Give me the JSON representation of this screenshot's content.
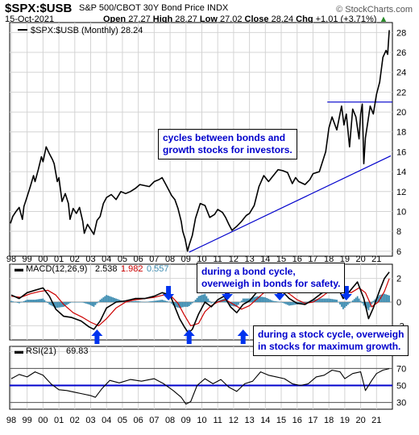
{
  "header": {
    "symbol": "$SPX:$USB",
    "name": "S&P 500/CBOT 30Y Bond Price INDX",
    "source": "© StockCharts.com",
    "date": "15-Oct-2021",
    "open_label": "Open",
    "open": "27.27",
    "high_label": "High",
    "high": "28.27",
    "low_label": "Low",
    "low": "27.02",
    "close_label": "Close",
    "close": "28.24",
    "chg_label": "Chg",
    "chg": "+1.01 (+3.71%)"
  },
  "colors": {
    "price": "#000000",
    "trend": "#0000cc",
    "macd": "#000000",
    "signal": "#cc0000",
    "hist": "#3b8bb0",
    "arrow": "#0033ee",
    "rsi_line": "#0000cc"
  },
  "annotations": {
    "price_note": [
      "cycles between bonds and",
      "growth stocks for investors."
    ],
    "bond_note": [
      "during a bond cycle,",
      "overweigh in bonds for safety."
    ],
    "stock_note": [
      "during a stock cycle, overweigh",
      "in stocks for maximum growth."
    ]
  },
  "chart_data": [
    {
      "type": "line",
      "legend": "$SPX:$USB (Monthly) 28.24",
      "y_ticks": [
        6,
        8,
        10,
        12,
        14,
        16,
        18,
        20,
        22,
        24,
        26,
        28
      ],
      "ylim": [
        5.5,
        29
      ],
      "x_ticks": [
        "98",
        "99",
        "00",
        "01",
        "02",
        "03",
        "04",
        "05",
        "06",
        "07",
        "08",
        "09",
        "10",
        "11",
        "12",
        "13",
        "14",
        "15",
        "16",
        "17",
        "18",
        "19",
        "20",
        "21"
      ],
      "xlim": [
        1997.9,
        2022.0
      ],
      "series": [
        {
          "x": [
            1997.95,
            1998.1,
            1998.3,
            1998.5,
            1998.7,
            1998.8,
            1999.0,
            1999.2,
            1999.4,
            1999.5,
            1999.7,
            1999.9,
            2000.0,
            2000.2,
            2000.4,
            2000.6,
            2000.7,
            2000.9,
            2001.0,
            2001.2,
            2001.4,
            2001.6,
            2001.7,
            2001.9,
            2002.1,
            2002.3,
            2002.5,
            2002.6,
            2002.8,
            2003.0,
            2003.2,
            2003.4,
            2003.6,
            2003.8,
            2004.0,
            2004.3,
            2004.6,
            2004.9,
            2005.2,
            2005.5,
            2005.8,
            2006.1,
            2006.4,
            2006.7,
            2007.0,
            2007.3,
            2007.5,
            2007.7,
            2007.9,
            2008.1,
            2008.3,
            2008.5,
            2008.7,
            2008.8,
            2008.95,
            2009.1,
            2009.2,
            2009.4,
            2009.6,
            2009.9,
            2010.2,
            2010.5,
            2010.8,
            2011.0,
            2011.3,
            2011.5,
            2011.7,
            2011.9,
            2012.2,
            2012.5,
            2012.8,
            2013.0,
            2013.3,
            2013.6,
            2013.9,
            2014.2,
            2014.5,
            2014.8,
            2015.1,
            2015.4,
            2015.7,
            2015.9,
            2016.1,
            2016.5,
            2016.8,
            2017.0,
            2017.4,
            2017.8,
            2018.0,
            2018.2,
            2018.5,
            2018.8,
            2018.95,
            2019.1,
            2019.3,
            2019.5,
            2019.7,
            2019.9,
            2020.0,
            2020.1,
            2020.2,
            2020.3,
            2020.45,
            2020.6,
            2020.8,
            2021.0,
            2021.2,
            2021.4,
            2021.6,
            2021.7,
            2021.8
          ],
          "y": [
            8.8,
            9.5,
            10.0,
            10.4,
            9.2,
            10.5,
            11.5,
            12.5,
            13.6,
            13.0,
            14.2,
            15.5,
            15.0,
            16.5,
            15.8,
            15.2,
            14.8,
            13.0,
            13.4,
            11.0,
            11.8,
            10.8,
            9.2,
            10.3,
            9.8,
            10.4,
            9.0,
            7.8,
            8.7,
            8.2,
            7.7,
            9.1,
            9.5,
            10.8,
            11.4,
            11.7,
            11.2,
            12.0,
            11.8,
            12.0,
            12.3,
            12.7,
            12.6,
            12.5,
            13.0,
            13.2,
            13.4,
            12.8,
            12.2,
            11.6,
            11.2,
            10.3,
            9.0,
            8.0,
            7.2,
            6.0,
            6.6,
            7.6,
            9.3,
            10.8,
            10.6,
            9.4,
            9.7,
            10.2,
            9.9,
            9.4,
            8.7,
            8.1,
            8.5,
            9.0,
            9.6,
            9.8,
            10.6,
            12.5,
            13.6,
            13.0,
            13.6,
            14.2,
            14.1,
            13.9,
            12.8,
            13.4,
            13.0,
            12.7,
            13.2,
            13.8,
            14.0,
            16.0,
            18.4,
            19.5,
            18.2,
            20.6,
            18.7,
            19.8,
            16.5,
            20.3,
            19.5,
            17.3,
            19.8,
            20.8,
            14.8,
            17.4,
            19.0,
            20.6,
            19.8,
            21.8,
            23.0,
            25.5,
            26.2,
            25.8,
            28.24
          ]
        }
      ],
      "trendline": {
        "x": [
          2009.2,
          2021.9
        ],
        "y": [
          5.9,
          15.6
        ]
      },
      "resistance": {
        "x": [
          2017.9,
          2022.0
        ],
        "y": [
          21.0,
          21.0
        ]
      }
    },
    {
      "type": "line",
      "legend_label": "MACD(12,26,9)",
      "legend_values": [
        "2.538",
        "1.982",
        "0.557"
      ],
      "y_ticks": [
        -2,
        0,
        2
      ],
      "ylim": [
        -3.2,
        3.2
      ],
      "xlim": [
        1997.9,
        2022.0
      ],
      "series": [
        {
          "name": "MACD",
          "x": [
            1998.0,
            1998.5,
            1999.0,
            1999.5,
            2000.0,
            2000.4,
            2000.8,
            2001.3,
            2001.8,
            2002.4,
            2002.9,
            2003.2,
            2003.6,
            2004.0,
            2004.6,
            2005.2,
            2005.8,
            2006.4,
            2007.0,
            2007.5,
            2008.0,
            2008.3,
            2008.6,
            2008.9,
            2009.15,
            2009.4,
            2009.8,
            2010.2,
            2010.6,
            2011.0,
            2011.4,
            2011.8,
            2012.2,
            2012.6,
            2013.0,
            2013.5,
            2014.0,
            2014.5,
            2015.0,
            2015.5,
            2016.0,
            2016.5,
            2017.0,
            2017.5,
            2018.0,
            2018.5,
            2018.9,
            2019.3,
            2019.8,
            2020.2,
            2020.5,
            2020.8,
            2021.2,
            2021.5,
            2021.8
          ],
          "y": [
            0.6,
            0.3,
            0.8,
            1.0,
            1.2,
            0.5,
            -0.6,
            -1.2,
            -1.3,
            -1.6,
            -2.1,
            -2.3,
            -1.6,
            -0.5,
            0.0,
            0.1,
            0.3,
            0.3,
            0.5,
            0.8,
            0.6,
            -0.4,
            -1.4,
            -2.1,
            -2.6,
            -2.3,
            -1.0,
            0.0,
            -0.4,
            0.2,
            0.5,
            -0.4,
            -0.9,
            -0.2,
            0.1,
            0.9,
            1.4,
            1.2,
            1.0,
            0.3,
            -0.1,
            -0.2,
            0.2,
            0.7,
            1.2,
            1.4,
            0.3,
            0.9,
            1.7,
            0.3,
            -1.4,
            -0.5,
            1.0,
            2.0,
            2.54
          ]
        },
        {
          "name": "Signal",
          "x": [
            1998.0,
            1998.6,
            1999.2,
            1999.8,
            2000.3,
            2000.8,
            2001.3,
            2001.9,
            2002.5,
            2003.0,
            2003.5,
            2004.0,
            2004.6,
            2005.2,
            2005.8,
            2006.4,
            2007.0,
            2007.6,
            2008.0,
            2008.5,
            2008.9,
            2009.3,
            2009.8,
            2010.2,
            2010.6,
            2011.0,
            2011.5,
            2012.0,
            2012.5,
            2013.0,
            2013.5,
            2014.0,
            2014.5,
            2015.0,
            2015.5,
            2016.0,
            2016.5,
            2017.0,
            2017.5,
            2018.0,
            2018.5,
            2019.0,
            2019.4,
            2019.9,
            2020.3,
            2020.7,
            2021.1,
            2021.5,
            2021.8
          ],
          "y": [
            0.5,
            0.4,
            0.7,
            0.9,
            1.0,
            0.6,
            -0.2,
            -0.9,
            -1.3,
            -1.7,
            -2.0,
            -1.4,
            -0.5,
            0.0,
            0.2,
            0.3,
            0.4,
            0.6,
            0.6,
            -0.1,
            -1.1,
            -2.0,
            -1.8,
            -0.8,
            -0.3,
            0.0,
            0.2,
            -0.2,
            -0.6,
            -0.3,
            0.3,
            0.9,
            1.2,
            1.1,
            0.7,
            0.2,
            -0.1,
            0.0,
            0.4,
            0.9,
            1.2,
            1.0,
            0.8,
            1.2,
            0.8,
            -0.4,
            0.0,
            0.9,
            1.98
          ]
        },
        {
          "name": "Histogram",
          "x": [
            1998.0,
            1998.5,
            1999.0,
            1999.5,
            2000.0,
            2000.4,
            2000.8,
            2001.3,
            2001.8,
            2002.4,
            2002.9,
            2003.2,
            2003.6,
            2004.0,
            2004.6,
            2005.2,
            2005.8,
            2006.4,
            2007.0,
            2007.5,
            2008.0,
            2008.3,
            2008.6,
            2008.9,
            2009.15,
            2009.4,
            2009.8,
            2010.2,
            2010.6,
            2011.0,
            2011.4,
            2011.8,
            2012.2,
            2012.6,
            2013.0,
            2013.5,
            2014.0,
            2014.5,
            2015.0,
            2015.5,
            2016.0,
            2016.5,
            2017.0,
            2017.5,
            2018.0,
            2018.5,
            2018.9,
            2019.3,
            2019.8,
            2020.2,
            2020.5,
            2020.8,
            2021.2,
            2021.5,
            2021.8
          ],
          "y": [
            0.1,
            -0.1,
            0.2,
            0.2,
            0.3,
            -0.2,
            -0.5,
            -0.4,
            0.0,
            0.0,
            -0.2,
            -0.4,
            0.2,
            0.6,
            0.3,
            0.0,
            0.1,
            0.0,
            0.1,
            0.2,
            0.0,
            -0.4,
            -0.5,
            -0.4,
            -0.4,
            -0.1,
            0.5,
            0.7,
            -0.1,
            0.1,
            0.3,
            -0.3,
            -0.4,
            0.3,
            0.3,
            0.5,
            0.4,
            0.1,
            0.0,
            -0.3,
            -0.2,
            -0.1,
            0.2,
            0.3,
            0.3,
            0.2,
            -0.6,
            -0.1,
            0.5,
            -0.3,
            -0.7,
            0.1,
            0.6,
            0.7,
            0.56
          ]
        }
      ],
      "bond_cycle_arrows_x": [
        2003.4,
        2009.2,
        2012.6,
        2017.0,
        2020.4
      ],
      "stock_cycle_arrows_x": [
        2007.9,
        2011.6,
        2014.9,
        2019.1
      ]
    },
    {
      "type": "line",
      "legend_label": "RSI(21)",
      "legend_value": "69.83",
      "y_ticks": [
        30,
        50,
        70,
        90
      ],
      "ylim": [
        22,
        96
      ],
      "xlim": [
        1997.9,
        2022.0
      ],
      "reference_line": 50,
      "series": [
        {
          "name": "RSI",
          "x": [
            1998.0,
            1998.5,
            1999.0,
            1999.5,
            2000.0,
            2000.5,
            2001.0,
            2001.5,
            2002.0,
            2002.5,
            2003.0,
            2003.3,
            2003.7,
            2004.2,
            2004.8,
            2005.5,
            2006.2,
            2007.0,
            2007.6,
            2008.2,
            2008.7,
            2009.0,
            2009.3,
            2009.7,
            2010.2,
            2010.7,
            2011.2,
            2011.7,
            2012.2,
            2012.7,
            2013.2,
            2013.7,
            2014.2,
            2014.7,
            2015.2,
            2015.7,
            2016.2,
            2016.7,
            2017.2,
            2017.7,
            2018.2,
            2018.7,
            2019.0,
            2019.5,
            2020.0,
            2020.3,
            2020.7,
            2021.0,
            2021.4,
            2021.8
          ],
          "y": [
            58,
            63,
            60,
            66,
            62,
            52,
            45,
            44,
            42,
            40,
            38,
            36,
            46,
            56,
            53,
            57,
            55,
            58,
            52,
            44,
            36,
            28,
            31,
            50,
            58,
            52,
            57,
            48,
            43,
            52,
            55,
            66,
            62,
            60,
            58,
            52,
            50,
            52,
            60,
            62,
            68,
            66,
            58,
            64,
            66,
            44,
            56,
            64,
            68,
            69.83
          ]
        }
      ]
    }
  ]
}
